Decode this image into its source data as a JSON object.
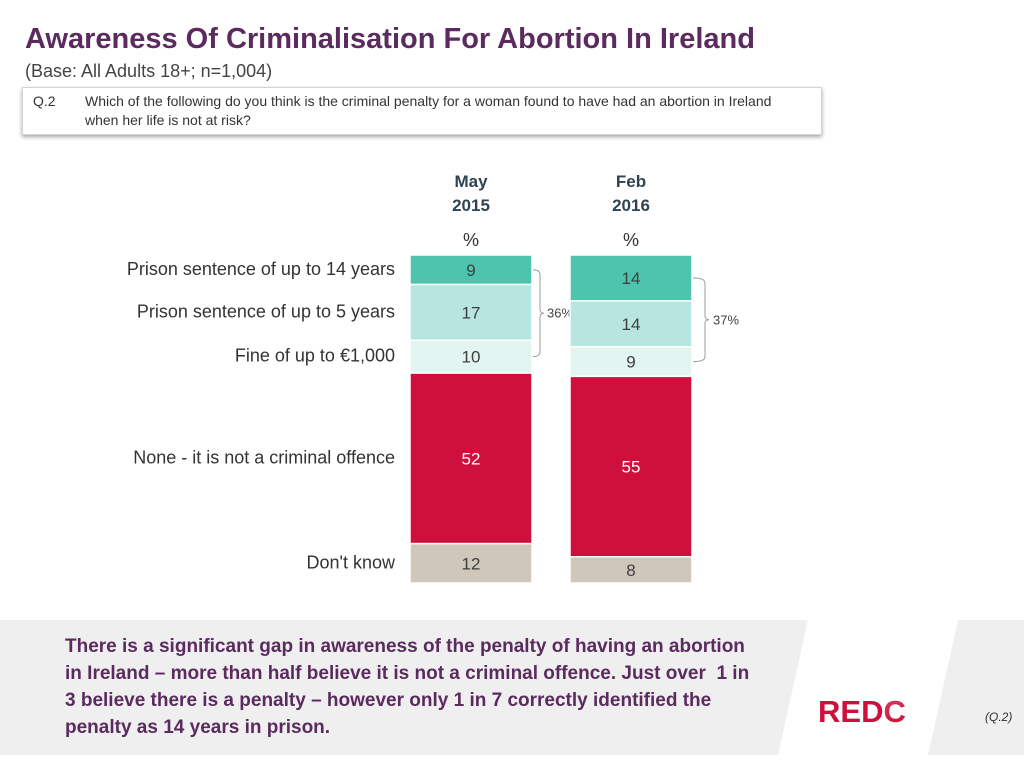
{
  "title": "Awareness Of Criminalisation For Abortion In Ireland",
  "subtitle": "(Base: All Adults 18+; n=1,004)",
  "question": {
    "number": "Q.2",
    "lines": [
      "Which of the following do you think is the criminal penalty for a woman found to have had an abortion in Ireland",
      "when her life is not at risk?"
    ]
  },
  "chart_data": {
    "type": "bar",
    "stacked": true,
    "unit": "%",
    "ylim": [
      0,
      100
    ],
    "columns": [
      {
        "month": "May",
        "year": "2015"
      },
      {
        "month": "Feb",
        "year": "2016"
      }
    ],
    "series": [
      {
        "name": "Prison sentence of up to 14 years",
        "values": [
          9,
          14
        ],
        "color": "#4ec4ae",
        "label_color": "#3f3f3f"
      },
      {
        "name": "Prison sentence of up to 5 years",
        "values": [
          17,
          14
        ],
        "color": "#b7e6e0",
        "label_color": "#3f3f3f"
      },
      {
        "name": "Fine of up to €1,000",
        "values": [
          10,
          9
        ],
        "color": "#e2f5f1",
        "label_color": "#3f3f3f"
      },
      {
        "name": "None - it is not a criminal offence",
        "values": [
          52,
          55
        ],
        "color": "#d0103c",
        "label_color": "#ffffff"
      },
      {
        "name": "Don't know",
        "values": [
          12,
          8
        ],
        "color": "#cec7ba",
        "label_color": "#3f3f3f"
      }
    ],
    "net_labels": [
      "36%",
      "37%"
    ]
  },
  "takeaway": {
    "lines": [
      "There is a significant gap in awareness of the penalty of having an abortion",
      "in Ireland – more than half believe it is not a criminal offence. Just over  1 in",
      "3 believe there is a penalty – however only 1 in 7 correctly identified the",
      "penalty as 14 years in prison."
    ]
  },
  "footer": {
    "logo": {
      "main": "RED",
      "mark": "C"
    },
    "reference": "(Q.2)"
  },
  "colors": {
    "heading": "#5b2a5e",
    "band": "#efefef",
    "brand_red": "#d0103c"
  }
}
